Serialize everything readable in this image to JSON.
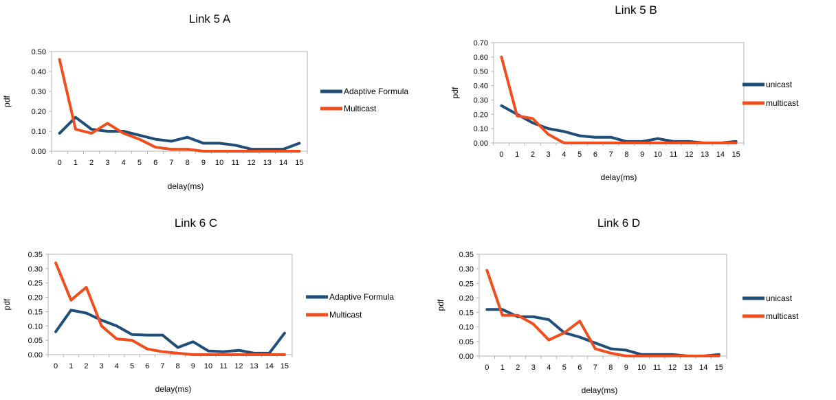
{
  "chart_data": [
    {
      "type": "line",
      "title": "Link 5 A",
      "xlabel": "delay(ms)",
      "ylabel": "pdf",
      "x": [
        0,
        1,
        2,
        3,
        4,
        5,
        6,
        7,
        8,
        9,
        10,
        11,
        12,
        13,
        14,
        15
      ],
      "ylim": [
        0,
        0.5
      ],
      "yticks": [
        "0.00",
        "0.10",
        "0.20",
        "0.30",
        "0.40",
        "0.50"
      ],
      "grid": false,
      "legend_position": "right",
      "series": [
        {
          "name": "Adaptive Formula",
          "color": "#1f4e79",
          "values": [
            0.09,
            0.17,
            0.11,
            0.1,
            0.1,
            0.08,
            0.06,
            0.05,
            0.07,
            0.04,
            0.04,
            0.03,
            0.01,
            0.01,
            0.01,
            0.04
          ]
        },
        {
          "name": "Multicast",
          "color": "#f04e1f",
          "values": [
            0.46,
            0.11,
            0.09,
            0.14,
            0.09,
            0.06,
            0.02,
            0.01,
            0.01,
            0.0,
            0.0,
            0.0,
            0.0,
            0.0,
            0.0,
            0.0
          ]
        }
      ]
    },
    {
      "type": "line",
      "title": "Link 5 B",
      "xlabel": "delay(ms)",
      "ylabel": "pdf",
      "x": [
        0,
        1,
        2,
        3,
        4,
        5,
        6,
        7,
        8,
        9,
        10,
        11,
        12,
        13,
        14,
        15
      ],
      "ylim": [
        0,
        0.7
      ],
      "yticks": [
        "0.00",
        "0.10",
        "0.20",
        "0.30",
        "0.40",
        "0.50",
        "0.60",
        "0.70"
      ],
      "grid": false,
      "legend_position": "right",
      "series": [
        {
          "name": "unicast",
          "color": "#1f4e79",
          "values": [
            0.26,
            0.2,
            0.14,
            0.1,
            0.08,
            0.05,
            0.04,
            0.04,
            0.01,
            0.01,
            0.03,
            0.01,
            0.01,
            0.0,
            0.0,
            0.01
          ]
        },
        {
          "name": "multicast",
          "color": "#f04e1f",
          "values": [
            0.6,
            0.19,
            0.17,
            0.06,
            0.0,
            0.0,
            0.0,
            0.0,
            0.0,
            0.0,
            0.0,
            0.0,
            0.0,
            0.0,
            0.0,
            0.0
          ]
        }
      ]
    },
    {
      "type": "line",
      "title": "Link 6 C",
      "xlabel": "delay(ms)",
      "ylabel": "pdf",
      "x": [
        0,
        1,
        2,
        3,
        4,
        5,
        6,
        7,
        8,
        9,
        10,
        11,
        12,
        13,
        14,
        15
      ],
      "ylim": [
        0,
        0.35
      ],
      "yticks": [
        "0.00",
        "0.05",
        "0.10",
        "0.15",
        "0.20",
        "0.25",
        "0.30",
        "0.35"
      ],
      "grid": false,
      "legend_position": "right",
      "series": [
        {
          "name": "Adaptive Formula",
          "color": "#1f4e79",
          "values": [
            0.08,
            0.155,
            0.145,
            0.12,
            0.1,
            0.07,
            0.068,
            0.068,
            0.025,
            0.045,
            0.013,
            0.01,
            0.015,
            0.005,
            0.005,
            0.075
          ]
        },
        {
          "name": "Multicast",
          "color": "#f04e1f",
          "values": [
            0.32,
            0.19,
            0.235,
            0.1,
            0.055,
            0.05,
            0.02,
            0.01,
            0.005,
            0.0,
            0.0,
            0.0,
            0.0,
            0.0,
            0.0,
            0.0
          ]
        }
      ]
    },
    {
      "type": "line",
      "title": "Link 6 D",
      "xlabel": "delay(ms)",
      "ylabel": "pdf",
      "x": [
        0,
        1,
        2,
        3,
        4,
        5,
        6,
        7,
        8,
        9,
        10,
        11,
        12,
        13,
        14,
        15
      ],
      "ylim": [
        0,
        0.35
      ],
      "yticks": [
        "0.00",
        "0.05",
        "0.10",
        "0.15",
        "0.20",
        "0.25",
        "0.30",
        "0.35"
      ],
      "grid": false,
      "legend_position": "right",
      "series": [
        {
          "name": "unicast",
          "color": "#1f4e79",
          "values": [
            0.16,
            0.16,
            0.135,
            0.135,
            0.125,
            0.08,
            0.065,
            0.045,
            0.025,
            0.02,
            0.005,
            0.005,
            0.005,
            0.0,
            0.0,
            0.005
          ]
        },
        {
          "name": "multicast",
          "color": "#f04e1f",
          "values": [
            0.295,
            0.14,
            0.14,
            0.11,
            0.055,
            0.08,
            0.12,
            0.025,
            0.01,
            0.0,
            0.0,
            0.0,
            0.0,
            0.0,
            0.0,
            0.0
          ]
        }
      ]
    }
  ]
}
